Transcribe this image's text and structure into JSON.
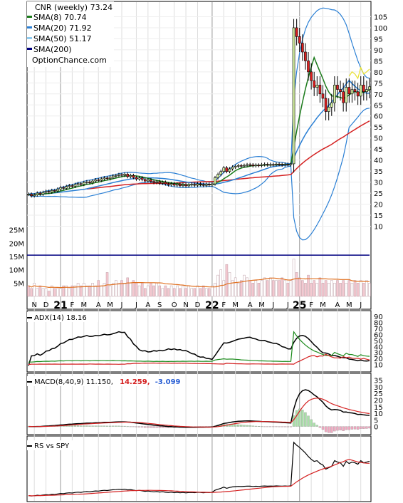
{
  "chart_data": {
    "type": "line",
    "title": "CNR (weekly) 73.24",
    "site": "OptionChance.com",
    "colors": {
      "sma8": "#1a7a1a",
      "sma20": "#2a7fd4",
      "sma50": "#8ecbf0",
      "sma200": "#000080",
      "upper_band": "#e8e030",
      "sma200_line": "#d42020",
      "volume_fill": "#f4c8d0",
      "volume_up": "#ffffff",
      "volume_line": "#e07020",
      "volume_avg": "#000080",
      "adx": "#000000",
      "di_plus": "#1a8a1a",
      "di_minus": "#d42020",
      "macd": "#000000",
      "signal": "#d42020",
      "hist_pos": "#a8e0a8",
      "hist_neg": "#f0a8c0",
      "rs": "#000000",
      "rs_ma": "#d42020"
    },
    "legend": [
      {
        "key": "sma8",
        "label": "SMA(8) 70.74"
      },
      {
        "key": "sma20",
        "label": "SMA(20) 71.92"
      },
      {
        "key": "sma50",
        "label": "SMA(50) 51.17"
      },
      {
        "key": "sma200",
        "label": "SMA(200)"
      }
    ],
    "x_labels": [
      {
        "i": 2,
        "label": "N"
      },
      {
        "i": 6,
        "label": "D"
      },
      {
        "i": 11,
        "label": "21",
        "big": true
      },
      {
        "i": 15,
        "label": "F"
      },
      {
        "i": 19,
        "label": "M"
      },
      {
        "i": 24,
        "label": "A"
      },
      {
        "i": 28,
        "label": "M"
      },
      {
        "i": 32,
        "label": "J"
      },
      {
        "i": 37,
        "label": "J"
      },
      {
        "i": 41,
        "label": "A"
      },
      {
        "i": 45,
        "label": "S"
      },
      {
        "i": 50,
        "label": "O"
      },
      {
        "i": 54,
        "label": "N"
      },
      {
        "i": 58,
        "label": "D"
      },
      {
        "i": 63,
        "label": "22",
        "big": true
      },
      {
        "i": 67,
        "label": "F"
      },
      {
        "i": 71,
        "label": "M"
      },
      {
        "i": 76,
        "label": "A"
      },
      {
        "i": 80,
        "label": "M"
      },
      {
        "i": 84,
        "label": "J"
      },
      {
        "i": 89,
        "label": "J"
      },
      {
        "i": 93,
        "label": "25",
        "big": true
      },
      {
        "i": 97,
        "label": "F"
      },
      {
        "i": 101,
        "label": "M"
      },
      {
        "i": 106,
        "label": "A"
      },
      {
        "i": 110,
        "label": "M"
      },
      {
        "i": 114,
        "label": "J"
      }
    ],
    "price_axis": {
      "ylim": [
        -27,
        110
      ],
      "ticks": [
        10,
        15,
        20,
        25,
        30,
        35,
        40,
        45,
        50,
        55,
        60,
        65,
        70,
        75,
        80,
        85,
        90,
        95,
        100,
        105
      ]
    },
    "volume_axis": {
      "ylim": [
        0,
        30
      ],
      "ticks": [
        {
          "v": 5,
          "label": "5M"
        },
        {
          "v": 10,
          "label": "10M"
        },
        {
          "v": 15,
          "label": "15M"
        },
        {
          "v": 20,
          "label": "20M"
        },
        {
          "v": 25,
          "label": "25M"
        }
      ],
      "sma200_level": 15.5
    },
    "adx_panel": {
      "label": "ADX(14) 18.16",
      "ylim": [
        0,
        95
      ],
      "ticks": [
        10,
        20,
        30,
        40,
        50,
        60,
        70,
        80,
        90
      ]
    },
    "macd_panel": {
      "label": "MACD(8,40,9) 11.150,",
      "value2": "14.259,",
      "value3": "-3.099",
      "ylim": [
        -4,
        37
      ],
      "ticks": [
        0,
        5,
        10,
        15,
        20,
        25,
        30,
        35
      ]
    },
    "rs_panel": {
      "label": "RS vs SPY",
      "ylim": [
        0,
        100
      ]
    },
    "close": [
      24.5,
      23.8,
      24.2,
      25.0,
      24.6,
      25.3,
      25.8,
      25.5,
      26.2,
      26.0,
      26.8,
      27.5,
      27.2,
      28.0,
      28.4,
      28.1,
      28.9,
      29.3,
      29.0,
      29.8,
      30.1,
      29.7,
      30.5,
      31.0,
      30.8,
      31.5,
      31.9,
      31.6,
      32.2,
      32.8,
      33.0,
      33.4,
      33.1,
      33.6,
      32.5,
      33.0,
      32.1,
      31.4,
      31.9,
      31.2,
      30.5,
      31.0,
      30.3,
      29.8,
      30.2,
      29.5,
      29.9,
      29.2,
      28.8,
      29.3,
      28.6,
      29.1,
      28.4,
      28.9,
      28.3,
      28.8,
      29.0,
      28.6,
      29.2,
      28.9,
      28.5,
      29.0,
      28.7,
      29.2,
      32.0,
      33.5,
      34.8,
      36.5,
      34.8,
      36.0,
      36.8,
      37.2,
      37.5,
      37.3,
      37.6,
      37.9,
      37.8,
      37.4,
      37.7,
      37.5,
      37.9,
      38.1,
      37.8,
      38.0,
      37.9,
      38.2,
      38.0,
      37.8,
      38.1,
      37.9,
      38.3,
      100.0,
      96.0,
      93.0,
      89.0,
      85.0,
      80.0,
      76.0,
      73.0,
      74.0,
      70.0,
      68.0,
      62.0,
      64.0,
      66.0,
      74.0,
      72.0,
      71.0,
      66.0,
      73.0,
      70.0,
      72.0,
      71.0,
      69.0,
      74.0,
      71.0,
      72.0,
      73.24
    ],
    "volume": [
      4,
      3,
      5,
      3,
      4,
      3,
      3,
      2,
      4,
      3,
      3,
      3,
      4,
      4,
      3,
      4,
      4,
      5,
      4,
      5,
      4,
      4,
      5,
      4,
      6,
      4,
      5,
      9,
      4,
      5,
      6,
      5,
      6,
      5,
      7,
      5,
      6,
      5,
      4,
      5,
      3,
      4,
      5,
      4,
      5,
      4,
      3,
      4,
      3,
      4,
      3,
      4,
      3,
      4,
      3,
      4,
      3,
      3,
      4,
      3,
      4,
      3,
      3,
      4,
      5,
      8,
      10,
      6,
      12,
      9,
      6,
      7,
      5,
      6,
      8,
      7,
      6,
      5,
      6,
      5,
      6,
      7,
      6,
      7,
      6,
      6,
      6,
      7,
      6,
      5,
      6,
      14,
      9,
      7,
      6,
      5,
      8,
      5,
      6,
      5,
      7,
      5,
      6,
      5,
      6,
      5,
      6,
      5,
      6,
      5,
      6,
      5,
      6,
      5,
      6,
      5,
      6,
      5
    ]
  }
}
